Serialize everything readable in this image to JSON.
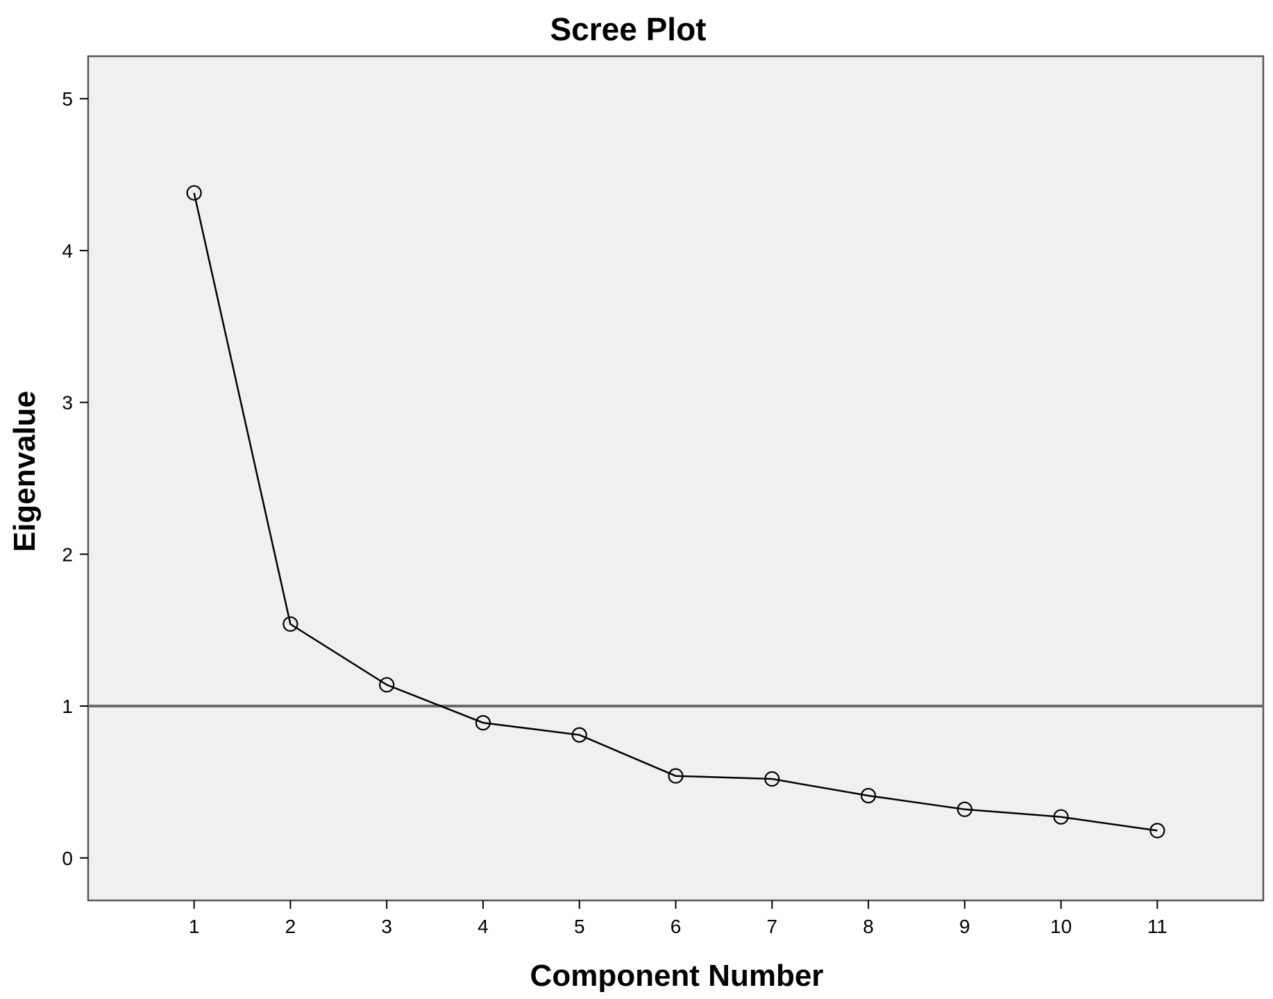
{
  "chart_data": {
    "type": "line",
    "title": "Scree Plot",
    "xlabel": "Component Number",
    "ylabel": "Eigenvalue",
    "x": [
      1,
      2,
      3,
      4,
      5,
      6,
      7,
      8,
      9,
      10,
      11
    ],
    "series": [
      {
        "values": [
          4.38,
          1.54,
          1.14,
          0.89,
          0.81,
          0.54,
          0.52,
          0.41,
          0.32,
          0.27,
          0.18
        ]
      }
    ],
    "xlim": [
      -0.1,
      12.1
    ],
    "ylim": [
      -0.28,
      5.28
    ],
    "xticks": [
      1,
      2,
      3,
      4,
      5,
      6,
      7,
      8,
      9,
      10,
      11
    ],
    "yticks": [
      0,
      1,
      2,
      3,
      4,
      5
    ],
    "reference_line": {
      "orientation": "horizontal",
      "value": 1
    },
    "grid": false,
    "legend": "none",
    "colors": {
      "plot_background": "#f0f0f0",
      "line": "#000000",
      "marker_edge": "#000000",
      "reference_line": "#6a6a6a",
      "frame": "#555555"
    },
    "marker": "open-circle"
  }
}
